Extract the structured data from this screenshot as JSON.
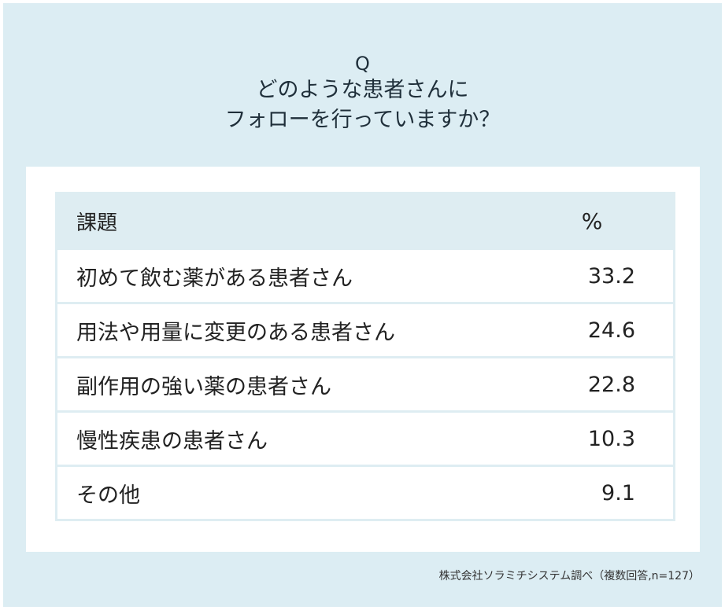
{
  "question": {
    "mark": "Q",
    "line1": "どのような患者さんに",
    "line2": "フォローを行っていますか？"
  },
  "chart_data": {
    "type": "table",
    "columns": [
      "課題",
      "%"
    ],
    "rows": [
      {
        "label": "初めて飲む薬がある患者さん",
        "value": "33.2"
      },
      {
        "label": "用法や用量に変更のある患者さん",
        "value": "24.6"
      },
      {
        "label": "副作用の強い薬の患者さん",
        "value": "22.8"
      },
      {
        "label": "慢性疾患の患者さん",
        "value": "10.3"
      },
      {
        "label": "その他",
        "value": "9.1"
      }
    ]
  },
  "footnote": "株式会社ソラミチシステム調べ（複数回答,n=127）"
}
